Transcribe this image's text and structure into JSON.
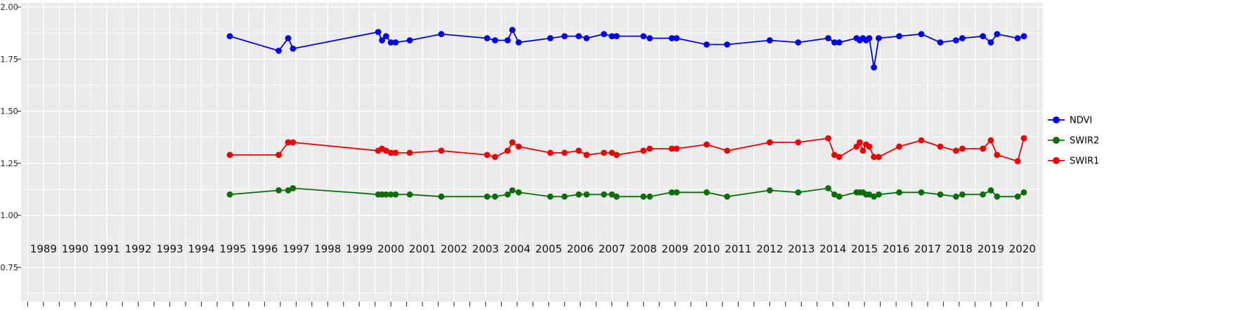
{
  "style": {
    "background": "#ffffff",
    "panel_bg": "#ebebeb",
    "grid_color": "#ffffff",
    "tick_color": "#333333",
    "x_label_color": "#141414",
    "y_label_color": "#262626",
    "legend_text_color": "#000000"
  },
  "legend": {
    "position": "right",
    "items": [
      {
        "label": "NDVI",
        "color": "#0000f0"
      },
      {
        "label": "SWIR2",
        "color": "#0a6e0a"
      },
      {
        "label": "SWIR1",
        "color": "#f00000"
      }
    ]
  },
  "chart_data": {
    "type": "line",
    "title": "",
    "xlabel": "",
    "ylabel": "",
    "xlim": [
      1988.29,
      2020.65
    ],
    "ylim": [
      0.75,
      2.0
    ],
    "grid": true,
    "legend_position": "right",
    "x_ticks": [
      1989,
      1990,
      1991,
      1992,
      1993,
      1994,
      1995,
      1996,
      1997,
      1998,
      1999,
      2000,
      2001,
      2002,
      2003,
      2004,
      2005,
      2006,
      2007,
      2008,
      2009,
      2010,
      2011,
      2012,
      2013,
      2014,
      2015,
      2016,
      2017,
      2018,
      2019,
      2020
    ],
    "x_tick_labels": [
      "1989",
      "1990",
      "1991",
      "1992",
      "1993",
      "1994",
      "1995",
      "1996",
      "1997",
      "1998",
      "1999",
      "2000",
      "2001",
      "2002",
      "2003",
      "2004",
      "2005",
      "2006",
      "2007",
      "2008",
      "2009",
      "2010",
      "2011",
      "2012",
      "2013",
      "2014",
      "2015",
      "2016",
      "2017",
      "2018",
      "2019",
      "2020"
    ],
    "y_ticks": [
      0.75,
      1.0,
      1.25,
      1.5,
      1.75,
      2.0
    ],
    "y_tick_labels": [
      "0.75",
      "1.00",
      "1.25",
      "1.50",
      "1.75",
      "2.00"
    ],
    "y_minor_ticks": [
      0.625,
      0.875,
      1.125,
      1.375,
      1.625,
      1.875
    ],
    "x": [
      1994.9,
      1996.45,
      1996.75,
      1996.9,
      1999.6,
      1999.72,
      1999.85,
      2000.0,
      2000.15,
      2000.6,
      2001.6,
      2003.05,
      2003.3,
      2003.7,
      2003.85,
      2004.05,
      2005.05,
      2005.5,
      2005.95,
      2006.2,
      2006.75,
      2007.0,
      2007.15,
      2008.0,
      2008.2,
      2008.9,
      2009.05,
      2010.0,
      2010.65,
      2012.0,
      2012.9,
      2013.85,
      2014.05,
      2014.2,
      2014.75,
      2014.85,
      2014.95,
      2015.05,
      2015.15,
      2015.3,
      2015.45,
      2016.1,
      2016.8,
      2017.4,
      2017.9,
      2018.1,
      2018.75,
      2019.0,
      2019.2,
      2019.85,
      2020.05
    ],
    "series": [
      {
        "name": "NDVI",
        "color": "#0000f0",
        "values": [
          1.86,
          1.79,
          1.85,
          1.8,
          1.88,
          1.84,
          1.86,
          1.83,
          1.83,
          1.84,
          1.87,
          1.85,
          1.84,
          1.84,
          1.89,
          1.83,
          1.85,
          1.86,
          1.86,
          1.85,
          1.87,
          1.86,
          1.86,
          1.86,
          1.85,
          1.85,
          1.85,
          1.82,
          1.82,
          1.84,
          1.83,
          1.85,
          1.83,
          1.83,
          1.85,
          1.84,
          1.85,
          1.84,
          1.85,
          1.71,
          1.85,
          1.86,
          1.87,
          1.83,
          1.84,
          1.85,
          1.86,
          1.83,
          1.87,
          1.85,
          1.86
        ]
      },
      {
        "name": "SWIR2",
        "color": "#0a6e0a",
        "values": [
          1.1,
          1.12,
          1.12,
          1.13,
          1.1,
          1.1,
          1.1,
          1.1,
          1.1,
          1.1,
          1.09,
          1.09,
          1.09,
          1.1,
          1.12,
          1.11,
          1.09,
          1.09,
          1.1,
          1.1,
          1.1,
          1.1,
          1.09,
          1.09,
          1.09,
          1.11,
          1.11,
          1.11,
          1.09,
          1.12,
          1.11,
          1.13,
          1.1,
          1.09,
          1.11,
          1.11,
          1.11,
          1.1,
          1.1,
          1.09,
          1.1,
          1.11,
          1.11,
          1.1,
          1.09,
          1.1,
          1.1,
          1.12,
          1.09,
          1.09,
          1.11
        ]
      },
      {
        "name": "SWIR1",
        "color": "#f00000",
        "values": [
          1.29,
          1.29,
          1.35,
          1.35,
          1.31,
          1.32,
          1.31,
          1.3,
          1.3,
          1.3,
          1.31,
          1.29,
          1.28,
          1.31,
          1.35,
          1.33,
          1.3,
          1.3,
          1.31,
          1.29,
          1.3,
          1.3,
          1.29,
          1.31,
          1.32,
          1.32,
          1.32,
          1.34,
          1.31,
          1.35,
          1.35,
          1.37,
          1.29,
          1.28,
          1.33,
          1.35,
          1.31,
          1.34,
          1.33,
          1.28,
          1.28,
          1.33,
          1.36,
          1.33,
          1.31,
          1.32,
          1.32,
          1.36,
          1.29,
          1.26,
          1.37
        ]
      }
    ]
  }
}
